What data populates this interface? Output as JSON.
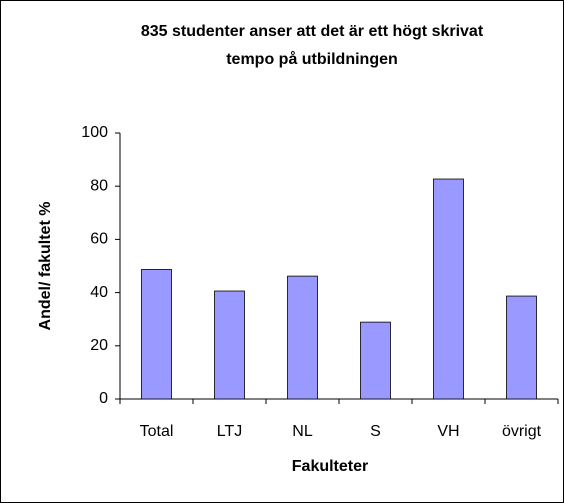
{
  "chart_data": {
    "type": "bar",
    "title": [
      "835 studenter anser att det är ett högt skrivat",
      "tempo på utbildningen"
    ],
    "x_label": "Fakulteter",
    "y_label": "Andel/ fakultet %",
    "categories": [
      "Total",
      "LTJ",
      "NL",
      "S",
      "VH",
      "övrigt"
    ],
    "values": [
      48.7,
      40.6,
      46.2,
      28.9,
      82.7,
      38.7
    ],
    "color": "#9999ff",
    "ylim": [
      0,
      100
    ],
    "yticks": [
      0,
      20,
      40,
      60,
      80,
      100
    ],
    "grid": false
  }
}
